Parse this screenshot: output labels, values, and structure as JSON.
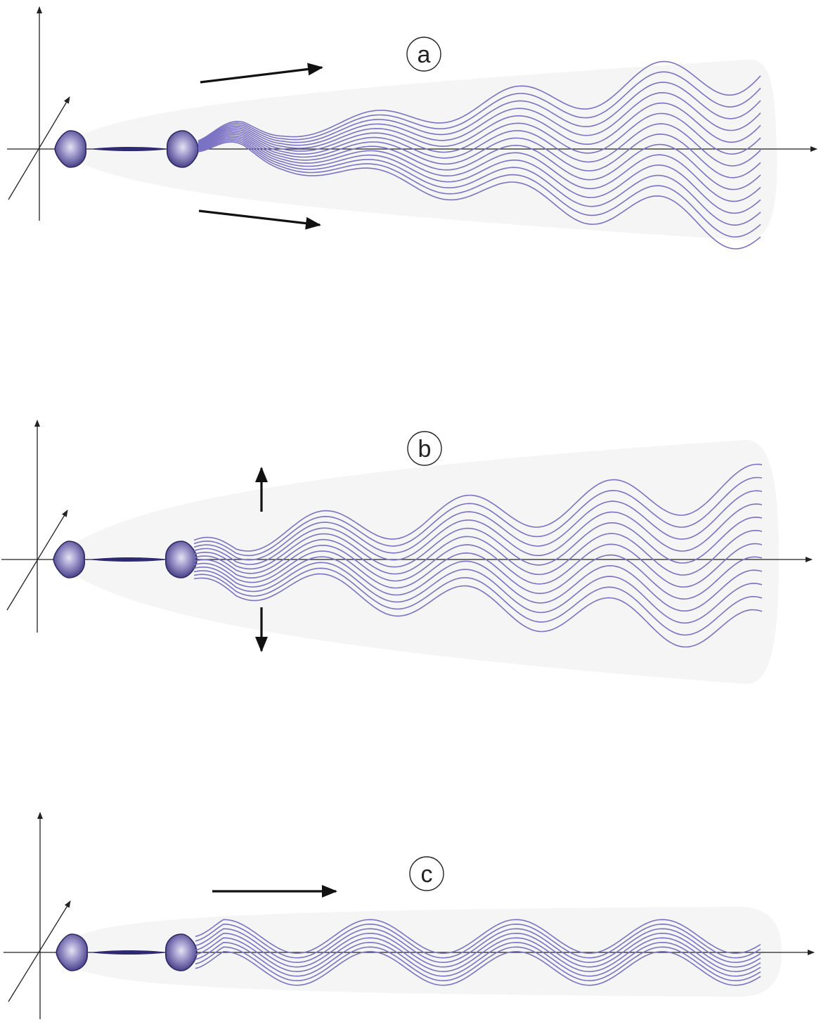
{
  "panels": [
    {
      "id": "a",
      "label": "a"
    },
    {
      "id": "b",
      "label": "b"
    },
    {
      "id": "c",
      "label": "c"
    }
  ],
  "colors": {
    "wave": "#7a72c4",
    "lobe_dark": "#2c2768",
    "lobe_light": "#e4e2f2",
    "beam": "#f5f5f6",
    "arrow": "#111111"
  }
}
